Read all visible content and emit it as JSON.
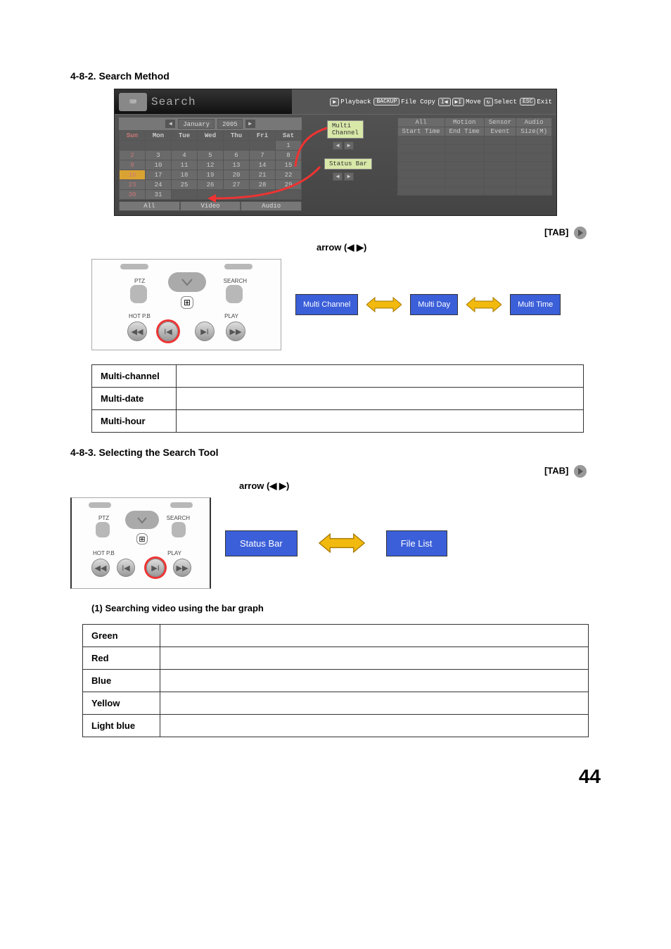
{
  "section1": {
    "heading": "4-8-2. Search Method"
  },
  "dvr": {
    "title": "Search",
    "hints": {
      "playback": "Playback",
      "backup": "BACKUP",
      "filecopy": "File Copy",
      "move": "Move",
      "select": "Select",
      "exit": "Exit"
    },
    "calendar": {
      "month": "January",
      "year": "2005",
      "weekdays": [
        "Sun",
        "Mon",
        "Tue",
        "Wed",
        "Thu",
        "Fri",
        "Sat"
      ],
      "rows": [
        [
          "",
          "",
          "",
          "",
          "",
          "",
          "1"
        ],
        [
          "2",
          "3",
          "4",
          "5",
          "6",
          "7",
          "8"
        ],
        [
          "9",
          "10",
          "11",
          "12",
          "13",
          "14",
          "15"
        ],
        [
          "16",
          "17",
          "18",
          "19",
          "20",
          "21",
          "22"
        ],
        [
          "23",
          "24",
          "25",
          "26",
          "27",
          "28",
          "29"
        ],
        [
          "30",
          "31",
          "",
          "",
          "",
          "",
          ""
        ]
      ],
      "selected": "16",
      "tabs": [
        "All",
        "Video",
        "Audio"
      ]
    },
    "tags": {
      "multi_channel": "Multi\nChannel",
      "status_bar": "Status Bar"
    },
    "fileTable": {
      "row1": [
        "All",
        "Motion",
        "Sensor",
        "Audio"
      ],
      "row2": [
        "Start Time",
        "End Time",
        "Event",
        "Size(M)"
      ]
    }
  },
  "tab1": {
    "label": "[TAB]"
  },
  "arrow1": {
    "label": "arrow (◀ ▶)"
  },
  "remote": {
    "ptz": "PTZ",
    "search": "SEARCH",
    "hotpb": "HOT P.B",
    "play": "PLAY"
  },
  "flow1": {
    "boxes": [
      "Multi Channel",
      "Multi Day",
      "Multi Time"
    ]
  },
  "defTable": {
    "rows": [
      "Multi-channel",
      "Multi-date",
      "Multi-hour"
    ]
  },
  "section2": {
    "heading": "4-8-3. Selecting the Search Tool"
  },
  "tab2": {
    "label": "[TAB]"
  },
  "arrow2": {
    "label": "arrow (◀ ▶)"
  },
  "flow2": {
    "boxes": [
      "Status Bar",
      "File List"
    ]
  },
  "sub1": {
    "heading": "(1) Searching video using the bar graph"
  },
  "colorTable": {
    "rows": [
      "Green",
      "Red",
      "Blue",
      "Yellow",
      "Light blue"
    ]
  },
  "pageNum": "44",
  "colors": {
    "flowBox": "#3b5fd9",
    "yellowArrow": "#f2b90f",
    "tagBox": "#d8e8a8",
    "selectedDay": "#d9a334",
    "redRing": "#e33"
  }
}
